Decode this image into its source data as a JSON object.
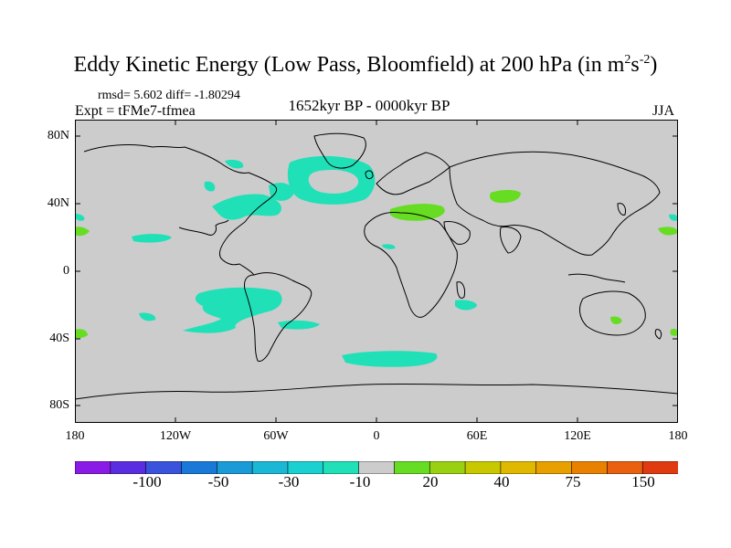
{
  "title": "Eddy Kinetic Energy (Low Pass, Bloomfield) at 200 hPa",
  "title_units_prefix": "(in m",
  "title_units_sup1": "2",
  "title_units_mid": "s",
  "title_units_sup2": "-2",
  "title_units_suffix": ")",
  "stats_text": "rmsd= 5.602 diff= -1.80294",
  "expt_text": "Expt = tFMe7-tfmea",
  "period_text": "1652kyr BP - 0000kyr BP",
  "season_text": "JJA",
  "lat_labels": [
    "80N",
    "40N",
    "0",
    "40S",
    "80S"
  ],
  "lon_labels": [
    "180",
    "120W",
    "60W",
    "0",
    "60E",
    "120E",
    "180"
  ],
  "colorbar": {
    "colors": [
      "#8a1ae6",
      "#5a2ee0",
      "#3a52dc",
      "#1a78d8",
      "#1a9ad6",
      "#1ab8d4",
      "#1ad0d0",
      "#20e0b8",
      "#cccccc",
      "#66dd22",
      "#99d011",
      "#c8c800",
      "#e0b800",
      "#e8a000",
      "#e88000",
      "#e86010",
      "#e03a10"
    ],
    "labels": [
      "-100",
      "-50",
      "-30",
      "-10",
      "20",
      "40",
      "75",
      "150"
    ]
  },
  "map_colors": {
    "background": "#cccccc",
    "negative_fill": "#20e0b8",
    "positive_fill": "#66dd22",
    "coastline": "#000000"
  }
}
